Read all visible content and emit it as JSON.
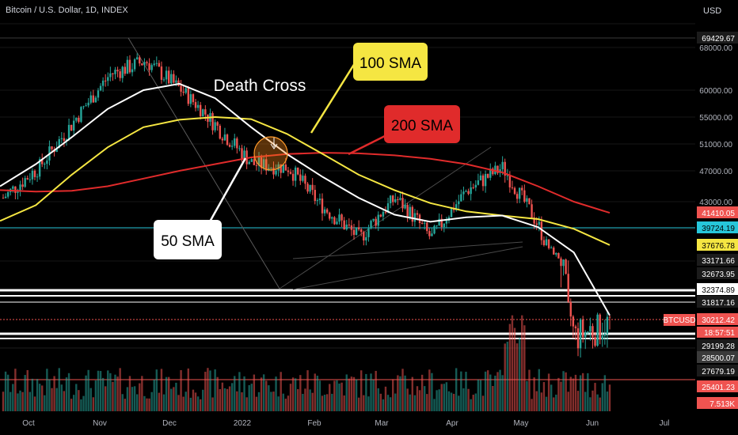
{
  "header": {
    "symbol_title": "Bitcoin / U.S. Dollar, 1D, INDEX",
    "currency": "USD"
  },
  "annotations": {
    "death_cross": "Death Cross",
    "sma100": "100 SMA",
    "sma200": "200 SMA",
    "sma50": "50 SMA"
  },
  "colors": {
    "bull": "#26a69a",
    "bear": "#ef5350",
    "sma50": "#ffffff",
    "sma100": "#f5e642",
    "sma200": "#e02b2b",
    "cyan_line": "#26c6da",
    "hline": "#ffffff"
  },
  "chart_data": {
    "type": "line",
    "title": "Bitcoin / U.S. Dollar, 1D, INDEX",
    "ylabel": "USD",
    "x_ticks": [
      "Oct",
      "Nov",
      "Dec",
      "2022",
      "Feb",
      "Mar",
      "Apr",
      "May",
      "Jun",
      "Jul"
    ],
    "ylim": [
      28000,
      72000
    ],
    "y_ticks": [
      68000,
      60000,
      55000,
      51000,
      47000,
      43000
    ],
    "price_levels": [
      {
        "label": "69429.67",
        "value": 69429.67,
        "style": "box-dark"
      },
      {
        "label": "41410.05",
        "value": 41410.05,
        "style": "box-red"
      },
      {
        "label": "39724.19",
        "value": 39724.19,
        "style": "box-cyan"
      },
      {
        "label": "37676.78",
        "value": 37676.78,
        "style": "box-yellow"
      },
      {
        "label": "33171.66",
        "value": 33171.66,
        "style": "box-dark"
      },
      {
        "label": "32673.95",
        "value": 32673.95,
        "style": "box-dark"
      },
      {
        "label": "32374.89",
        "value": 32374.89,
        "style": "box-white"
      },
      {
        "label": "31817.16",
        "value": 31817.16,
        "style": "box-dark"
      },
      {
        "label": "30212.42",
        "value": 30212.42,
        "style": "box-red"
      },
      {
        "label": "29199.28",
        "value": 29199.28,
        "style": "box-dark"
      },
      {
        "label": "28500.07",
        "value": 28500.07,
        "style": "box-grey"
      },
      {
        "label": "27679.19",
        "value": 27679.19,
        "style": "box-dark"
      },
      {
        "label": "25401.23",
        "value": 25401.23,
        "style": "box-red"
      },
      {
        "label": "7.513K",
        "value": 7513,
        "style": "box-red"
      }
    ],
    "current": {
      "label": "BTCUSD",
      "price": "30212.42",
      "countdown": "18:57:51"
    },
    "series": [
      {
        "name": "50 SMA",
        "values": [
          45000,
          48000,
          52000,
          56500,
          60000,
          61200,
          58500,
          53500,
          49500,
          46200,
          43500,
          41200,
          40400,
          40900,
          41100,
          39800,
          35500,
          30600
        ]
      },
      {
        "name": "100 SMA",
        "values": [
          40500,
          42500,
          46500,
          50500,
          53500,
          54600,
          55000,
          54700,
          52500,
          49500,
          46500,
          44500,
          42800,
          41600,
          41100,
          40700,
          39600,
          37700
        ]
      },
      {
        "name": "200 SMA",
        "values": [
          44500,
          44300,
          44400,
          45000,
          46000,
          47000,
          48000,
          49000,
          49500,
          49700,
          49600,
          49300,
          48800,
          48000,
          46800,
          45000,
          43000,
          41400
        ]
      },
      {
        "name": "BTCUSD",
        "values": [
          43500,
          47500,
          54500,
          63000,
          65500,
          60000,
          53500,
          48000,
          47500,
          42000,
          38500,
          43500,
          38500,
          44500,
          47500,
          40000,
          29500,
          30200
        ]
      }
    ]
  }
}
